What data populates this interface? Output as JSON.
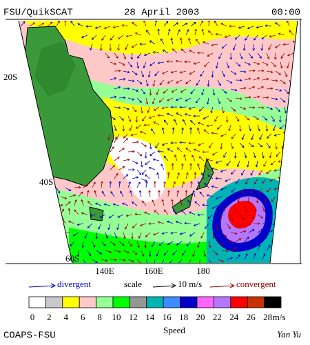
{
  "header": {
    "title": "FSU/QuikSCAT",
    "date": "28 April 2003",
    "time": "00:00"
  },
  "map": {
    "lat_labels": [
      "20S",
      "40S",
      "60S"
    ],
    "lon_labels": [
      "140E",
      "160E",
      "180"
    ]
  },
  "vector_legend": {
    "divergent": "divergent",
    "scale": "scale",
    "scale_value": "10 m/s",
    "convergent": "convergent"
  },
  "colorbar": {
    "ticks": [
      0,
      2,
      4,
      6,
      8,
      10,
      12,
      14,
      16,
      18,
      20,
      22,
      24,
      26,
      28
    ],
    "unit": "m/s",
    "colors": [
      "#ffffff",
      "#c8c8c8",
      "#ffff00",
      "#ffc8c8",
      "#96ff96",
      "#00ff00",
      "#969696",
      "#00b4b4",
      "#3c8cff",
      "#0000c8",
      "#ff64ff",
      "#b478ff",
      "#ff0000",
      "#c83200",
      "#000000"
    ],
    "label": "Speed"
  },
  "footer": {
    "left": "COAPS-FSU",
    "right": "Yan Yu"
  }
}
